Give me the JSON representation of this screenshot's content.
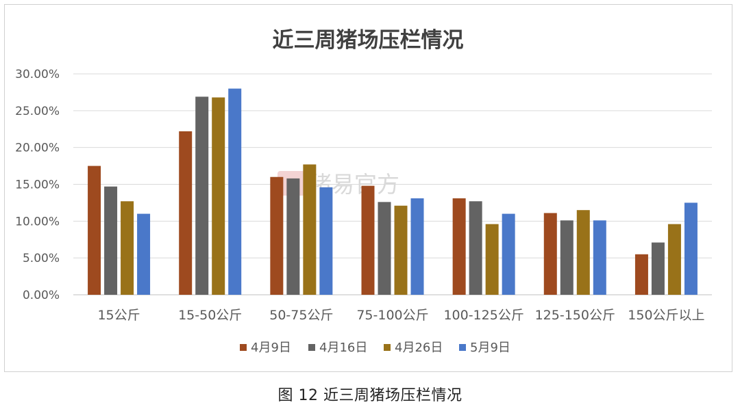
{
  "chart_data": {
    "type": "bar",
    "title": "近三周猪场压栏情况",
    "categories": [
      "15公斤",
      "15-50公斤",
      "50-75公斤",
      "75-100公斤",
      "100-125公斤",
      "125-150公斤",
      "150公斤以上"
    ],
    "series": [
      {
        "name": "4月9日",
        "color": "#9e4a1f",
        "values": [
          17.5,
          22.2,
          16.0,
          14.8,
          13.1,
          11.1,
          5.5
        ]
      },
      {
        "name": "4月16日",
        "color": "#636363",
        "values": [
          14.7,
          26.9,
          15.8,
          12.6,
          12.7,
          10.1,
          7.1
        ]
      },
      {
        "name": "4月26日",
        "color": "#997219",
        "values": [
          12.7,
          26.8,
          17.7,
          12.1,
          9.6,
          11.5,
          9.6
        ]
      },
      {
        "name": "5月9日",
        "color": "#4a78c9",
        "values": [
          11.0,
          28.0,
          14.6,
          13.1,
          11.0,
          10.1,
          12.5
        ]
      }
    ],
    "ylim": [
      0,
      30
    ],
    "yticks": [
      "0.00%",
      "5.00%",
      "10.00%",
      "15.00%",
      "20.00%",
      "25.00%",
      "30.00%"
    ],
    "grid": true,
    "legend": "bottom"
  },
  "watermark": "猪易官方",
  "caption": "图 12  近三周猪场压栏情况"
}
